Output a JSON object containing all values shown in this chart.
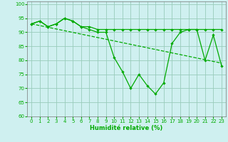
{
  "x": [
    0,
    1,
    2,
    3,
    4,
    5,
    6,
    7,
    8,
    9,
    10,
    11,
    12,
    13,
    14,
    15,
    16,
    17,
    18,
    19,
    20,
    21,
    22,
    23
  ],
  "line_jagged": [
    93,
    94,
    92,
    93,
    95,
    94,
    92,
    91,
    90,
    90,
    81,
    76,
    70,
    75,
    71,
    68,
    72,
    86,
    90,
    91,
    91,
    80,
    89,
    78
  ],
  "line_flat": [
    93,
    94,
    92,
    93,
    95,
    94,
    92,
    92,
    91,
    91,
    91,
    91,
    91,
    91,
    91,
    91,
    91,
    91,
    91,
    91,
    91,
    91,
    91,
    91
  ],
  "line_trend_x": [
    0,
    23
  ],
  "line_trend_y": [
    93,
    79
  ],
  "bg_color": "#cff0f0",
  "grid_color": "#99ccbb",
  "line_color": "#00aa00",
  "xlabel": "Humidité relative (%)",
  "ylim": [
    60,
    101
  ],
  "xlim": [
    -0.5,
    23.5
  ],
  "yticks": [
    60,
    65,
    70,
    75,
    80,
    85,
    90,
    95,
    100
  ],
  "xticks": [
    0,
    1,
    2,
    3,
    4,
    5,
    6,
    7,
    8,
    9,
    10,
    11,
    12,
    13,
    14,
    15,
    16,
    17,
    18,
    19,
    20,
    21,
    22,
    23
  ]
}
